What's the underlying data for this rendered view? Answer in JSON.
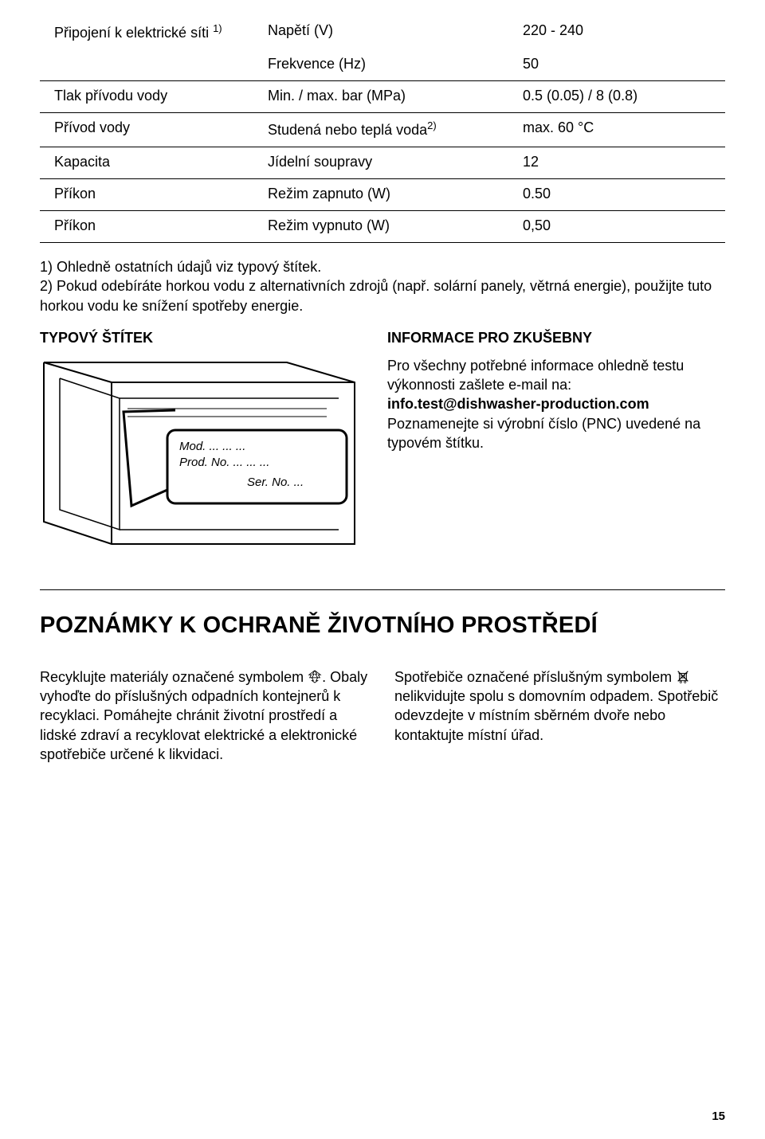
{
  "specs": {
    "rows": [
      {
        "label": "Připojení k elektrické síti ",
        "sup": "1)",
        "prop": "Napětí (V)",
        "value": "220 - 240",
        "ruled": false
      },
      {
        "label": "",
        "sup": "",
        "prop": "Frekvence (Hz)",
        "value": "50",
        "ruled": true
      },
      {
        "label": "Tlak přívodu vody",
        "sup": "",
        "prop": "Min. / max. bar (MPa)",
        "value": "0.5 (0.05) / 8 (0.8)",
        "ruled": true
      },
      {
        "label": "Přívod vody",
        "sup": "",
        "prop": "Studená nebo teplá voda",
        "prop_sup": "2)",
        "value": "max. 60 °C",
        "ruled": true
      },
      {
        "label": "Kapacita",
        "sup": "",
        "prop": "Jídelní soupravy",
        "value": "12",
        "ruled": true
      },
      {
        "label": "Příkon",
        "sup": "",
        "prop": "Režim zapnuto (W)",
        "value": "0.50",
        "ruled": true
      },
      {
        "label": "Příkon",
        "sup": "",
        "prop": "Režim vypnuto (W)",
        "value": "0,50",
        "ruled": true
      }
    ]
  },
  "footnotes": {
    "note1": "1) Ohledně ostatních údajů viz typový štítek.",
    "note2": "2) Pokud odebíráte horkou vodu z alternativních zdrojů (např. solární panely, větrná energie), použijte tuto horkou vodu ke snížení spotřeby energie."
  },
  "rating_plate": {
    "title": "TYPOVÝ ŠTÍTEK",
    "labels": {
      "mod": "Mod. ... ... ...",
      "prod": "Prod. No. ... ... ...",
      "ser": "Ser. No. ..."
    }
  },
  "test_info": {
    "title": "INFORMACE PRO ZKUŠEBNY",
    "body1": "Pro všechny potřebné informace ohledně testu výkonnosti zašlete e-mail na:",
    "email": "info.test@dishwasher-production.com",
    "body2": "Poznamenejte si výrobní číslo (PNC) uvedené na typovém štítku."
  },
  "env": {
    "heading": "POZNÁMKY K OCHRANĚ ŽIVOTNÍHO PROSTŘEDÍ",
    "col1a": "Recyklujte materiály označené symbolem ",
    "col1b": ". Obaly vyhoďte do příslušných odpadních kontejnerů k recyklaci. Pomáhejte chránit životní prostředí a lidské zdraví a recyklovat elektrické a elektronické spotřebiče určené k likvidaci.",
    "col2a": "Spotřebiče označené příslušným symbolem ",
    "col2b": " nelikvidujte spolu s domovním odpadem. Spotřebič odevzdejte v místním sběrném dvoře nebo kontaktujte místní úřad."
  },
  "page_number": "15"
}
